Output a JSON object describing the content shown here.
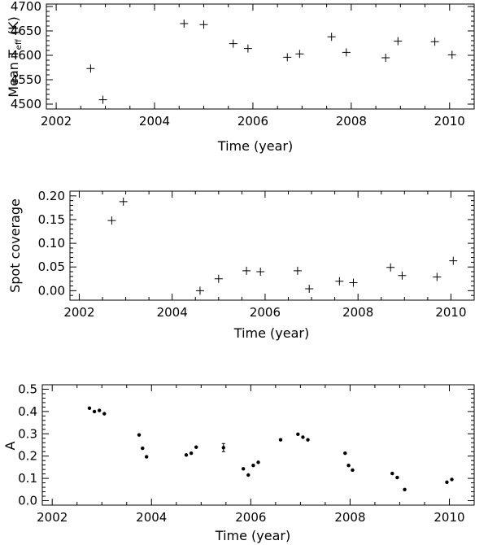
{
  "chart_data": [
    {
      "type": "scatter",
      "marker": "plus",
      "title": "",
      "xlabel": "Time (year)",
      "ylabel_main": "Mean T",
      "ylabel_sub": "eff",
      "ylabel_unit": " (K)",
      "xlim": [
        2001.8,
        2010.5
      ],
      "ylim": [
        4490,
        4705
      ],
      "xticks": [
        "2002",
        "2004",
        "2006",
        "2008",
        "2010"
      ],
      "yticks": [
        "4500",
        "4550",
        "4600",
        "4650",
        "4700"
      ],
      "grid": false,
      "x": [
        2002.7,
        2002.95,
        2004.6,
        2005.0,
        2005.6,
        2005.9,
        2006.7,
        2006.95,
        2007.6,
        2007.9,
        2008.7,
        2008.95,
        2009.7,
        2010.05
      ],
      "y": [
        4573,
        4509,
        4665,
        4663,
        4624,
        4614,
        4596,
        4603,
        4638,
        4606,
        4595,
        4629,
        4628,
        4601
      ]
    },
    {
      "type": "scatter",
      "marker": "plus",
      "title": "",
      "xlabel": "Time (year)",
      "ylabel": "Spot coverage",
      "xlim": [
        2001.8,
        2010.5
      ],
      "ylim": [
        -0.02,
        0.21
      ],
      "xticks": [
        "2002",
        "2004",
        "2006",
        "2008",
        "2010"
      ],
      "yticks": [
        "0.00",
        "0.05",
        "0.10",
        "0.15",
        "0.20"
      ],
      "grid": false,
      "x": [
        2002.7,
        2002.95,
        2004.6,
        2005.0,
        2005.6,
        2005.9,
        2006.7,
        2006.95,
        2007.6,
        2007.9,
        2008.7,
        2008.95,
        2009.7,
        2010.05
      ],
      "y": [
        0.148,
        0.188,
        0.0,
        0.025,
        0.042,
        0.04,
        0.042,
        0.004,
        0.02,
        0.017,
        0.049,
        0.032,
        0.029,
        0.063
      ]
    },
    {
      "type": "scatter",
      "marker": "dot",
      "title": "",
      "xlabel": "Time (year)",
      "ylabel": "A",
      "xlim": [
        2001.8,
        2010.5
      ],
      "ylim": [
        -0.02,
        0.52
      ],
      "xticks": [
        "2002",
        "2004",
        "2006",
        "2008",
        "2010"
      ],
      "yticks": [
        "0.0",
        "0.1",
        "0.2",
        "0.3",
        "0.4",
        "0.5"
      ],
      "grid": false,
      "x": [
        2002.75,
        2002.85,
        2002.95,
        2003.05,
        2003.75,
        2003.82,
        2003.9,
        2004.7,
        2004.8,
        2004.9,
        2005.45,
        2005.85,
        2005.95,
        2006.05,
        2006.15,
        2006.6,
        2006.95,
        2007.05,
        2007.15,
        2007.9,
        2007.97,
        2008.05,
        2008.85,
        2008.95,
        2009.1,
        2009.95,
        2010.05
      ],
      "y": [
        0.415,
        0.4,
        0.405,
        0.39,
        0.295,
        0.235,
        0.197,
        0.205,
        0.213,
        0.24,
        0.238,
        0.143,
        0.115,
        0.158,
        0.172,
        0.273,
        0.298,
        0.285,
        0.273,
        0.213,
        0.158,
        0.137,
        0.122,
        0.104,
        0.05,
        0.083,
        0.095
      ],
      "error_on": [
        10
      ]
    }
  ]
}
